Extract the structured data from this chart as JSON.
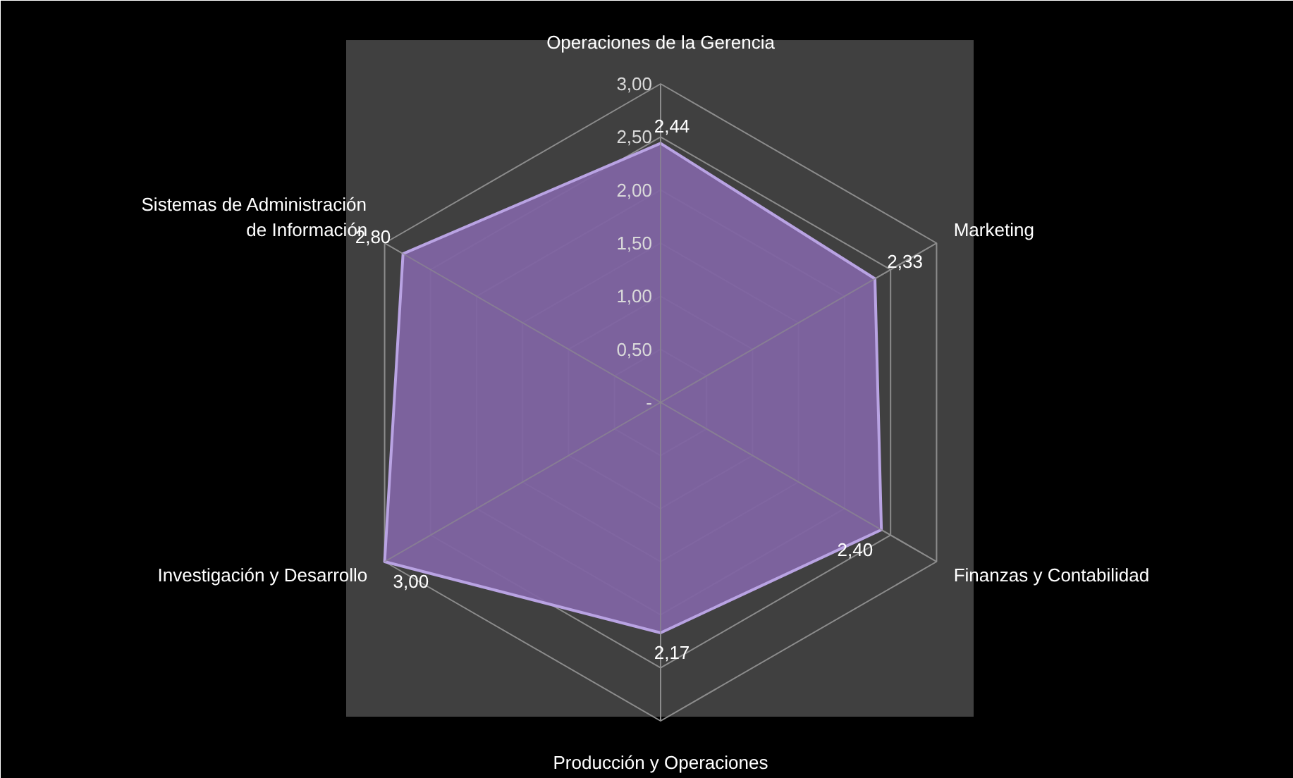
{
  "chart_data": {
    "type": "radar",
    "categories": [
      "Operaciones de la Gerencia",
      "Marketing",
      "Finanzas y Contabilidad",
      "Producción y Operaciones",
      "Investigación y Desarrollo",
      "Sistemas de Administración de Información"
    ],
    "series": [
      {
        "color": "#8064a2",
        "values": [
          2.44,
          2.33,
          2.4,
          2.17,
          3.0,
          2.8
        ]
      }
    ],
    "value_labels": [
      "2,44",
      "2,33",
      "2,40",
      "2,17",
      "3,00",
      "2,80"
    ],
    "ylim": [
      0,
      3
    ],
    "yticks": [
      {
        "value": 0,
        "label": "-"
      },
      {
        "value": 0.5,
        "label": "0,50"
      },
      {
        "value": 1,
        "label": "1,00"
      },
      {
        "value": 1.5,
        "label": "1,50"
      },
      {
        "value": 2,
        "label": "2,00"
      },
      {
        "value": 2.5,
        "label": "2,50"
      },
      {
        "value": 3,
        "label": "3,00"
      }
    ],
    "grid": true
  }
}
